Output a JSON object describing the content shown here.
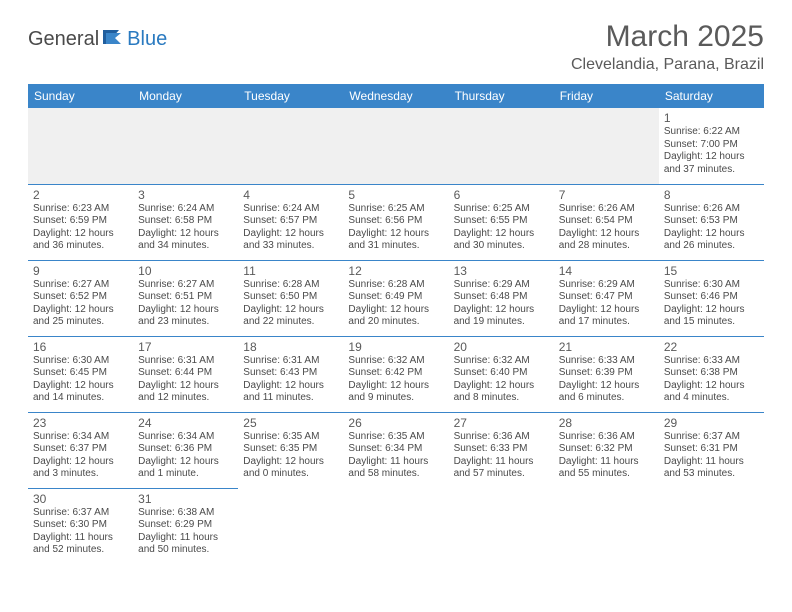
{
  "logo": {
    "text1": "General",
    "text2": "Blue"
  },
  "title": "March 2025",
  "location": "Clevelandia, Parana, Brazil",
  "colors": {
    "header_bg": "#3a85c9",
    "header_text": "#ffffff",
    "border": "#3a85c9",
    "text": "#4a4a4a",
    "title_text": "#5a5a5a",
    "logo_blue": "#2a7ac0",
    "empty_bg": "#f0f0f0"
  },
  "daysOfWeek": [
    "Sunday",
    "Monday",
    "Tuesday",
    "Wednesday",
    "Thursday",
    "Friday",
    "Saturday"
  ],
  "weeks": [
    [
      null,
      null,
      null,
      null,
      null,
      null,
      {
        "n": "1",
        "sr": "Sunrise: 6:22 AM",
        "ss": "Sunset: 7:00 PM",
        "d1": "Daylight: 12 hours",
        "d2": "and 37 minutes."
      }
    ],
    [
      {
        "n": "2",
        "sr": "Sunrise: 6:23 AM",
        "ss": "Sunset: 6:59 PM",
        "d1": "Daylight: 12 hours",
        "d2": "and 36 minutes."
      },
      {
        "n": "3",
        "sr": "Sunrise: 6:24 AM",
        "ss": "Sunset: 6:58 PM",
        "d1": "Daylight: 12 hours",
        "d2": "and 34 minutes."
      },
      {
        "n": "4",
        "sr": "Sunrise: 6:24 AM",
        "ss": "Sunset: 6:57 PM",
        "d1": "Daylight: 12 hours",
        "d2": "and 33 minutes."
      },
      {
        "n": "5",
        "sr": "Sunrise: 6:25 AM",
        "ss": "Sunset: 6:56 PM",
        "d1": "Daylight: 12 hours",
        "d2": "and 31 minutes."
      },
      {
        "n": "6",
        "sr": "Sunrise: 6:25 AM",
        "ss": "Sunset: 6:55 PM",
        "d1": "Daylight: 12 hours",
        "d2": "and 30 minutes."
      },
      {
        "n": "7",
        "sr": "Sunrise: 6:26 AM",
        "ss": "Sunset: 6:54 PM",
        "d1": "Daylight: 12 hours",
        "d2": "and 28 minutes."
      },
      {
        "n": "8",
        "sr": "Sunrise: 6:26 AM",
        "ss": "Sunset: 6:53 PM",
        "d1": "Daylight: 12 hours",
        "d2": "and 26 minutes."
      }
    ],
    [
      {
        "n": "9",
        "sr": "Sunrise: 6:27 AM",
        "ss": "Sunset: 6:52 PM",
        "d1": "Daylight: 12 hours",
        "d2": "and 25 minutes."
      },
      {
        "n": "10",
        "sr": "Sunrise: 6:27 AM",
        "ss": "Sunset: 6:51 PM",
        "d1": "Daylight: 12 hours",
        "d2": "and 23 minutes."
      },
      {
        "n": "11",
        "sr": "Sunrise: 6:28 AM",
        "ss": "Sunset: 6:50 PM",
        "d1": "Daylight: 12 hours",
        "d2": "and 22 minutes."
      },
      {
        "n": "12",
        "sr": "Sunrise: 6:28 AM",
        "ss": "Sunset: 6:49 PM",
        "d1": "Daylight: 12 hours",
        "d2": "and 20 minutes."
      },
      {
        "n": "13",
        "sr": "Sunrise: 6:29 AM",
        "ss": "Sunset: 6:48 PM",
        "d1": "Daylight: 12 hours",
        "d2": "and 19 minutes."
      },
      {
        "n": "14",
        "sr": "Sunrise: 6:29 AM",
        "ss": "Sunset: 6:47 PM",
        "d1": "Daylight: 12 hours",
        "d2": "and 17 minutes."
      },
      {
        "n": "15",
        "sr": "Sunrise: 6:30 AM",
        "ss": "Sunset: 6:46 PM",
        "d1": "Daylight: 12 hours",
        "d2": "and 15 minutes."
      }
    ],
    [
      {
        "n": "16",
        "sr": "Sunrise: 6:30 AM",
        "ss": "Sunset: 6:45 PM",
        "d1": "Daylight: 12 hours",
        "d2": "and 14 minutes."
      },
      {
        "n": "17",
        "sr": "Sunrise: 6:31 AM",
        "ss": "Sunset: 6:44 PM",
        "d1": "Daylight: 12 hours",
        "d2": "and 12 minutes."
      },
      {
        "n": "18",
        "sr": "Sunrise: 6:31 AM",
        "ss": "Sunset: 6:43 PM",
        "d1": "Daylight: 12 hours",
        "d2": "and 11 minutes."
      },
      {
        "n": "19",
        "sr": "Sunrise: 6:32 AM",
        "ss": "Sunset: 6:42 PM",
        "d1": "Daylight: 12 hours",
        "d2": "and 9 minutes."
      },
      {
        "n": "20",
        "sr": "Sunrise: 6:32 AM",
        "ss": "Sunset: 6:40 PM",
        "d1": "Daylight: 12 hours",
        "d2": "and 8 minutes."
      },
      {
        "n": "21",
        "sr": "Sunrise: 6:33 AM",
        "ss": "Sunset: 6:39 PM",
        "d1": "Daylight: 12 hours",
        "d2": "and 6 minutes."
      },
      {
        "n": "22",
        "sr": "Sunrise: 6:33 AM",
        "ss": "Sunset: 6:38 PM",
        "d1": "Daylight: 12 hours",
        "d2": "and 4 minutes."
      }
    ],
    [
      {
        "n": "23",
        "sr": "Sunrise: 6:34 AM",
        "ss": "Sunset: 6:37 PM",
        "d1": "Daylight: 12 hours",
        "d2": "and 3 minutes."
      },
      {
        "n": "24",
        "sr": "Sunrise: 6:34 AM",
        "ss": "Sunset: 6:36 PM",
        "d1": "Daylight: 12 hours",
        "d2": "and 1 minute."
      },
      {
        "n": "25",
        "sr": "Sunrise: 6:35 AM",
        "ss": "Sunset: 6:35 PM",
        "d1": "Daylight: 12 hours",
        "d2": "and 0 minutes."
      },
      {
        "n": "26",
        "sr": "Sunrise: 6:35 AM",
        "ss": "Sunset: 6:34 PM",
        "d1": "Daylight: 11 hours",
        "d2": "and 58 minutes."
      },
      {
        "n": "27",
        "sr": "Sunrise: 6:36 AM",
        "ss": "Sunset: 6:33 PM",
        "d1": "Daylight: 11 hours",
        "d2": "and 57 minutes."
      },
      {
        "n": "28",
        "sr": "Sunrise: 6:36 AM",
        "ss": "Sunset: 6:32 PM",
        "d1": "Daylight: 11 hours",
        "d2": "and 55 minutes."
      },
      {
        "n": "29",
        "sr": "Sunrise: 6:37 AM",
        "ss": "Sunset: 6:31 PM",
        "d1": "Daylight: 11 hours",
        "d2": "and 53 minutes."
      }
    ],
    [
      {
        "n": "30",
        "sr": "Sunrise: 6:37 AM",
        "ss": "Sunset: 6:30 PM",
        "d1": "Daylight: 11 hours",
        "d2": "and 52 minutes."
      },
      {
        "n": "31",
        "sr": "Sunrise: 6:38 AM",
        "ss": "Sunset: 6:29 PM",
        "d1": "Daylight: 11 hours",
        "d2": "and 50 minutes."
      },
      null,
      null,
      null,
      null,
      null
    ]
  ]
}
